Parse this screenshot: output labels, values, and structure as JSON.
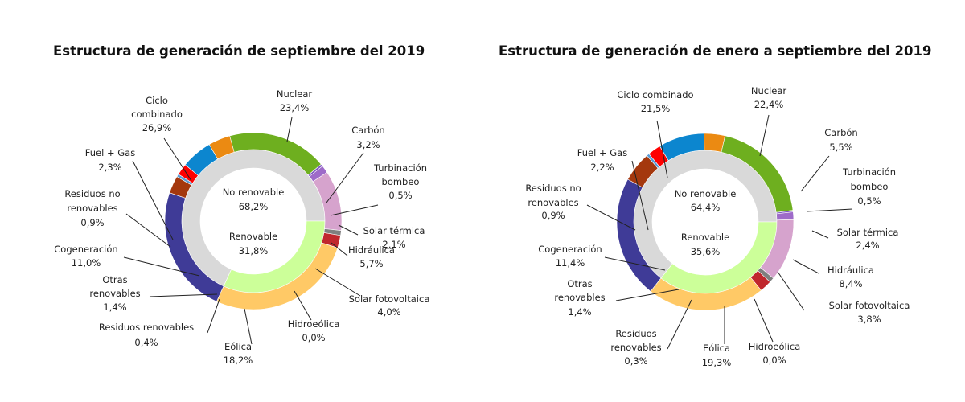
{
  "chart_data": [
    {
      "type": "pie",
      "title": "Estructura de generación de septiembre del 2019",
      "inner_ring": [
        {
          "name": "No renovable",
          "value": "68,2%"
        },
        {
          "name": "Renovable",
          "value": "31,8%"
        }
      ],
      "slices": [
        {
          "name": "Nuclear",
          "value": "23,4%",
          "color": "#3F3B97"
        },
        {
          "name": "Carbón",
          "value": "3,2%",
          "color": "#A4380E"
        },
        {
          "name": "Turbinación bombeo",
          "value": "0,5%",
          "color": "#5B9BD5"
        },
        {
          "name": "Solar térmica",
          "value": "2,1%",
          "color": "#FF0000"
        },
        {
          "name": "Hidráulica",
          "value": "5,7%",
          "color": "#0C86CF"
        },
        {
          "name": "Solar fotovoltaica",
          "value": "4,0%",
          "color": "#EB8A12"
        },
        {
          "name": "Hidroeólica",
          "value": "0,0%",
          "color": "#2E7D32"
        },
        {
          "name": "Eólica",
          "value": "18,2%",
          "color": "#6EAF1F"
        },
        {
          "name": "Residuos renovables",
          "value": "0,4%",
          "color": "#7E57C2"
        },
        {
          "name": "Otras renovables",
          "value": "1,4%",
          "color": "#9E6BC9"
        },
        {
          "name": "Cogeneración",
          "value": "11,0%",
          "color": "#D6A3CD"
        },
        {
          "name": "Residuos no renovables",
          "value": "0,9%",
          "color": "#7F7F7F"
        },
        {
          "name": "Fuel + Gas",
          "value": "2,3%",
          "color": "#C0272D"
        },
        {
          "name": "Ciclo combinado",
          "value": "26,9%",
          "color": "#FFC966"
        }
      ]
    },
    {
      "type": "pie",
      "title": "Estructura de generación de enero a septiembre del 2019",
      "inner_ring": [
        {
          "name": "No renovable",
          "value": "64,4%"
        },
        {
          "name": "Renovable",
          "value": "35,6%"
        }
      ],
      "slices": [
        {
          "name": "Nuclear",
          "value": "22,4%",
          "color": "#3F3B97"
        },
        {
          "name": "Carbón",
          "value": "5,5%",
          "color": "#A4380E"
        },
        {
          "name": "Turbinación bombeo",
          "value": "0,5%",
          "color": "#5B9BD5"
        },
        {
          "name": "Solar térmica",
          "value": "2,4%",
          "color": "#FF0000"
        },
        {
          "name": "Hidráulica",
          "value": "8,4%",
          "color": "#0C86CF"
        },
        {
          "name": "Solar fotovoltaica",
          "value": "3,8%",
          "color": "#EB8A12"
        },
        {
          "name": "Hidroeólica",
          "value": "0,0%",
          "color": "#2E7D32"
        },
        {
          "name": "Eólica",
          "value": "19,3%",
          "color": "#6EAF1F"
        },
        {
          "name": "Residuos renovables",
          "value": "0,3%",
          "color": "#7E57C2"
        },
        {
          "name": "Otras renovables",
          "value": "1,4%",
          "color": "#9E6BC9"
        },
        {
          "name": "Cogeneración",
          "value": "11,4%",
          "color": "#D6A3CD"
        },
        {
          "name": "Residuos no renovables",
          "value": "0,9%",
          "color": "#7F7F7F"
        },
        {
          "name": "Fuel + Gas",
          "value": "2,2%",
          "color": "#C0272D"
        },
        {
          "name": "Ciclo combinado",
          "value": "21,5%",
          "color": "#FFC966"
        }
      ]
    }
  ],
  "colors": {
    "non_renewable_ring": "#D9D9D9",
    "renewable_ring": "#CCFF99"
  }
}
